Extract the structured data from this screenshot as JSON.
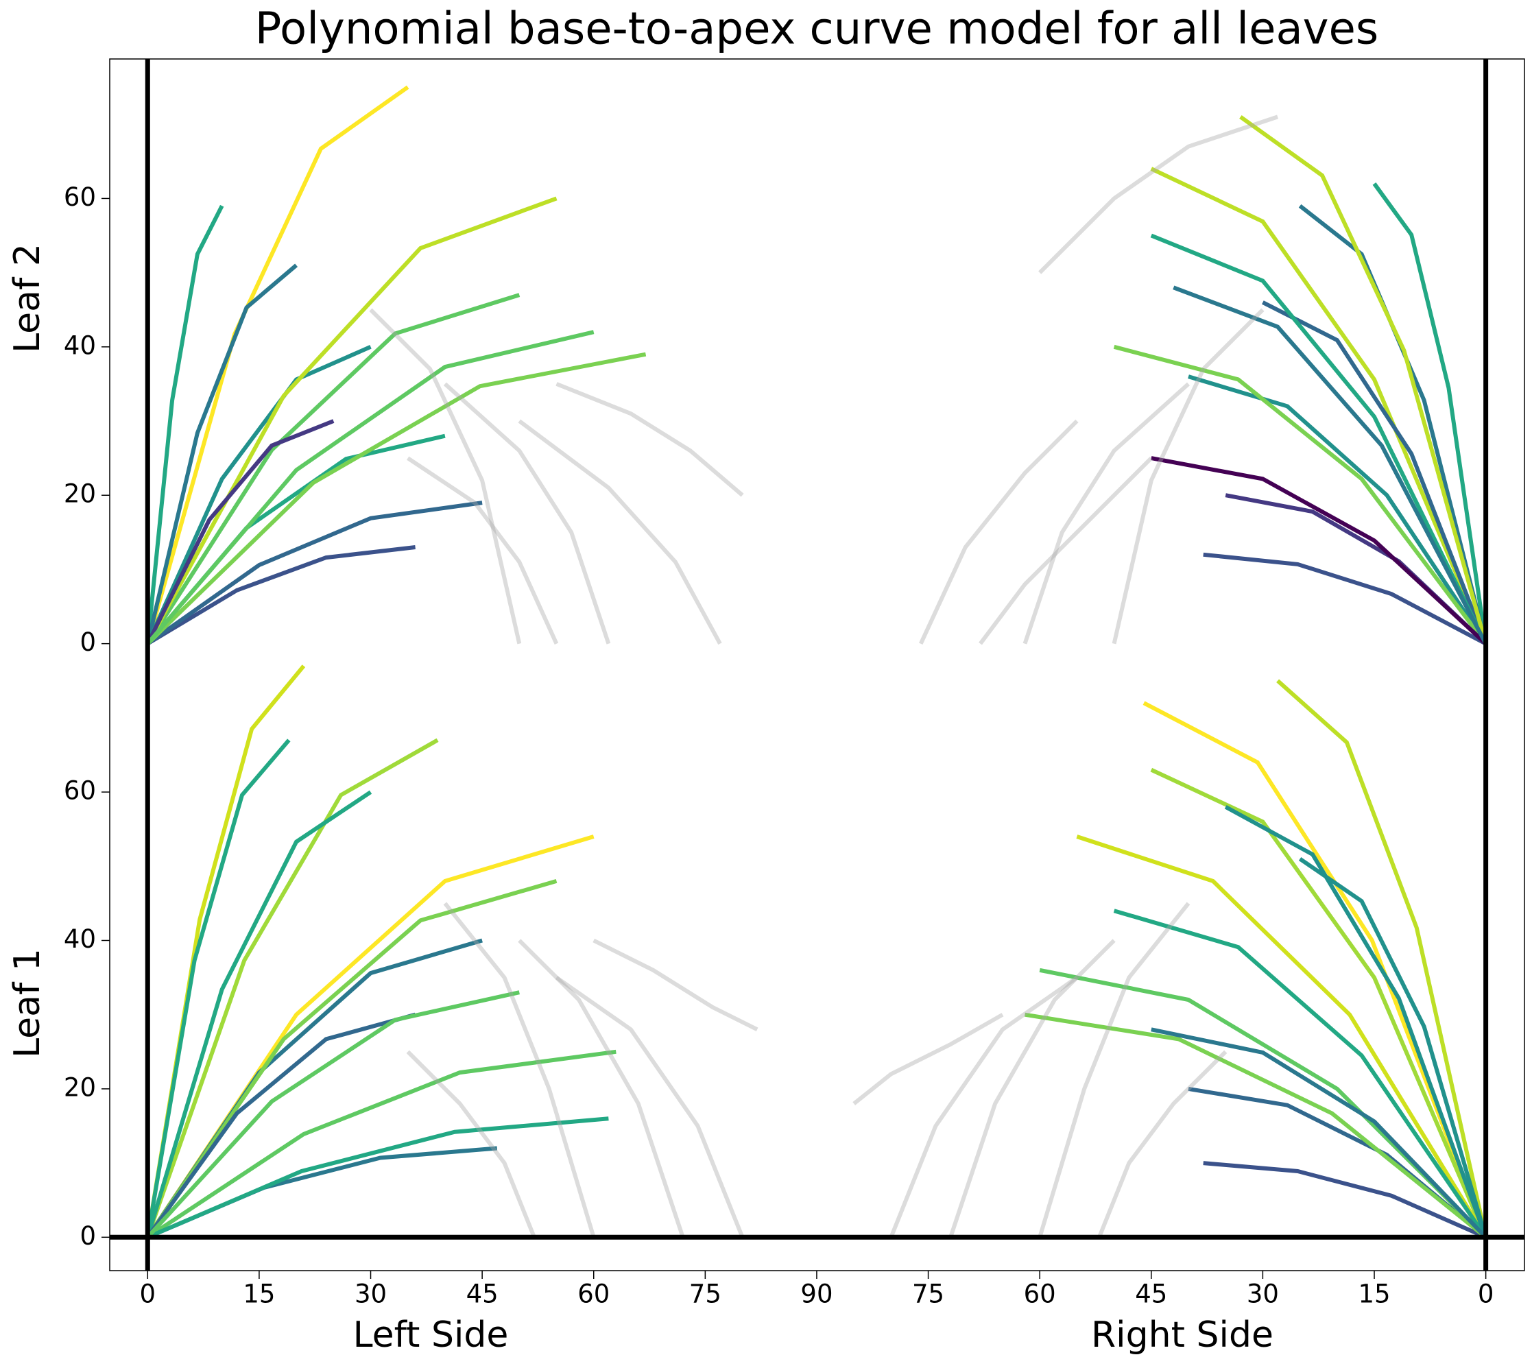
{
  "chart_data": {
    "type": "line",
    "title": "Polynomial base-to-apex curve model for all leaves",
    "xlabels": [
      "Left Side",
      "Right Side"
    ],
    "ylabels": [
      "Leaf 2",
      "Leaf 1"
    ],
    "xlim": [
      -5.1,
      185.2
    ],
    "ylim": [
      -4.5,
      158.8
    ],
    "xticks": [
      0,
      15,
      30,
      45,
      60,
      75,
      90,
      {
        "value": 105,
        "label": "75"
      },
      {
        "value": 120,
        "label": "60"
      },
      {
        "value": 135,
        "label": "45"
      },
      {
        "value": 150,
        "label": "30"
      },
      {
        "value": 165,
        "label": "15"
      },
      {
        "value": 180,
        "label": "0"
      }
    ],
    "yticks": [
      0,
      20,
      40,
      60,
      {
        "value": 80,
        "label": "0"
      },
      {
        "value": 100,
        "label": "20"
      },
      {
        "value": 120,
        "label": "40"
      },
      {
        "value": 140,
        "label": "60"
      }
    ],
    "reference_lines": {
      "x": [
        0,
        180
      ],
      "y": [
        0
      ]
    },
    "series": [
      {
        "color": "#3b528b",
        "x": [
          0,
          12,
          24,
          36
        ],
        "values": [
          80,
          87.2,
          91.6,
          93
        ]
      },
      {
        "color": "#22a884",
        "x": [
          0,
          3.3,
          6.7,
          10
        ],
        "values": [
          80,
          112.8,
          132.5,
          139
        ]
      },
      {
        "color": "#fde725",
        "x": [
          0,
          11.7,
          23.3,
          35
        ],
        "values": [
          80,
          121.7,
          146.7,
          155
        ]
      },
      {
        "color": "#2a788e",
        "x": [
          0,
          6.7,
          13.3,
          20
        ],
        "values": [
          80,
          108.4,
          125.3,
          131
        ]
      },
      {
        "color": "#31688e",
        "x": [
          0,
          15,
          30,
          45
        ],
        "values": [
          80,
          90.6,
          96.9,
          99
        ]
      },
      {
        "color": "#21918c",
        "x": [
          0,
          10,
          20,
          30
        ],
        "values": [
          80,
          102.2,
          115.6,
          120
        ]
      },
      {
        "color": "#22a884",
        "x": [
          0,
          13.3,
          26.7,
          40
        ],
        "values": [
          80,
          95.6,
          104.9,
          108
        ]
      },
      {
        "color": "#5ec962",
        "x": [
          0,
          16.7,
          33.3,
          50
        ],
        "values": [
          80,
          106.1,
          121.8,
          127
        ]
      },
      {
        "color": "#7ad151",
        "x": [
          0,
          22.3,
          44.7,
          67
        ],
        "values": [
          80,
          101.7,
          114.7,
          119
        ]
      },
      {
        "color": "#bddf26",
        "x": [
          0,
          18.3,
          36.7,
          55
        ],
        "values": [
          80,
          113.4,
          133.3,
          140
        ]
      },
      {
        "color": "#443983",
        "x": [
          0,
          8.3,
          16.7,
          25
        ],
        "values": [
          80,
          96.7,
          106.7,
          110
        ]
      },
      {
        "color": "#5ec962",
        "x": [
          0,
          20,
          40,
          60
        ],
        "values": [
          80,
          103.4,
          117.3,
          122
        ]
      },
      {
        "color": "#a8a8a8",
        "x": [
          30,
          38,
          45,
          50
        ],
        "values": [
          125,
          117,
          102,
          80
        ]
      },
      {
        "color": "#a8a8a8",
        "x": [
          40,
          50,
          57,
          62
        ],
        "values": [
          115,
          106,
          95,
          80
        ]
      },
      {
        "color": "#a8a8a8",
        "x": [
          50,
          62,
          71,
          77
        ],
        "values": [
          110,
          101,
          91,
          80
        ]
      },
      {
        "color": "#a8a8a8",
        "x": [
          55,
          65,
          73,
          80
        ],
        "values": [
          115,
          111,
          106,
          100
        ]
      },
      {
        "color": "#a8a8a8",
        "x": [
          35,
          44,
          50,
          55
        ],
        "values": [
          105,
          99,
          91,
          80
        ]
      },
      {
        "color": "#3b528b",
        "x": [
          180,
          167.3,
          154.7,
          142
        ],
        "values": [
          80,
          86.7,
          90.7,
          92
        ]
      },
      {
        "color": "#22a884",
        "x": [
          180,
          175,
          170,
          165
        ],
        "values": [
          80,
          114.5,
          135.1,
          142
        ]
      },
      {
        "color": "#bddf26",
        "x": [
          180,
          165,
          150,
          135
        ],
        "values": [
          80,
          115.6,
          136.9,
          144
        ]
      },
      {
        "color": "#2a788e",
        "x": [
          180,
          171.7,
          163.3,
          155
        ],
        "values": [
          80,
          112.8,
          132.5,
          139
        ]
      },
      {
        "color": "#21918c",
        "x": [
          180,
          166.7,
          153.3,
          140
        ],
        "values": [
          80,
          100,
          112,
          116
        ]
      },
      {
        "color": "#31688e",
        "x": [
          180,
          170,
          160,
          150
        ],
        "values": [
          80,
          105.6,
          120.9,
          126
        ]
      },
      {
        "color": "#22a884",
        "x": [
          180,
          165,
          150,
          135
        ],
        "values": [
          80,
          110.6,
          128.9,
          135
        ]
      },
      {
        "color": "#7ad151",
        "x": [
          180,
          163.3,
          146.7,
          130
        ],
        "values": [
          80,
          102.2,
          115.6,
          120
        ]
      },
      {
        "color": "#bddf26",
        "x": [
          180,
          169,
          158,
          147
        ],
        "values": [
          80,
          119.5,
          143.1,
          151
        ]
      },
      {
        "color": "#443983",
        "x": [
          180,
          168.3,
          156.7,
          145
        ],
        "values": [
          80,
          91.1,
          97.8,
          100
        ]
      },
      {
        "color": "#440154",
        "x": [
          180,
          165,
          150,
          135
        ],
        "values": [
          80,
          93.9,
          102.2,
          105
        ]
      },
      {
        "color": "#2a788e",
        "x": [
          180,
          166,
          152,
          138
        ],
        "values": [
          80,
          106.7,
          122.7,
          128
        ]
      },
      {
        "color": "#a8a8a8",
        "x": [
          150,
          142,
          135,
          130
        ],
        "values": [
          125,
          117,
          102,
          80
        ]
      },
      {
        "color": "#a8a8a8",
        "x": [
          140,
          130,
          123,
          118
        ],
        "values": [
          115,
          106,
          95,
          80
        ]
      },
      {
        "color": "#a8a8a8",
        "x": [
          135,
          125,
          118,
          112
        ],
        "values": [
          105,
          95,
          88,
          80
        ]
      },
      {
        "color": "#a8a8a8",
        "x": [
          125,
          118,
          110,
          104
        ],
        "values": [
          110,
          103,
          93,
          80
        ]
      },
      {
        "color": "#a8a8a8",
        "x": [
          120,
          130,
          140,
          152
        ],
        "values": [
          130,
          140,
          147,
          151
        ]
      },
      {
        "color": "#2a788e",
        "x": [
          0,
          15.7,
          31.3,
          47
        ],
        "values": [
          0,
          6.7,
          10.7,
          12
        ]
      },
      {
        "color": "#d0e11c",
        "x": [
          0,
          7,
          14,
          21
        ],
        "values": [
          0,
          42.8,
          68.5,
          77
        ]
      },
      {
        "color": "#22a884",
        "x": [
          0,
          6.3,
          12.7,
          19
        ],
        "values": [
          0,
          37.3,
          59.6,
          67
        ]
      },
      {
        "color": "#a0da39",
        "x": [
          0,
          13,
          26,
          39
        ],
        "values": [
          0,
          37.3,
          59.6,
          67
        ]
      },
      {
        "color": "#fde725",
        "x": [
          0,
          20,
          40,
          60
        ],
        "values": [
          0,
          30,
          48,
          54
        ]
      },
      {
        "color": "#5ec962",
        "x": [
          0,
          21,
          42,
          63
        ],
        "values": [
          0,
          13.9,
          22.2,
          25
        ]
      },
      {
        "color": "#2a788e",
        "x": [
          0,
          15,
          30,
          45
        ],
        "values": [
          0,
          22.2,
          35.6,
          40
        ]
      },
      {
        "color": "#7ad151",
        "x": [
          0,
          18.3,
          36.7,
          55
        ],
        "values": [
          0,
          26.7,
          42.7,
          48
        ]
      },
      {
        "color": "#22a884",
        "x": [
          0,
          10,
          20,
          30
        ],
        "values": [
          0,
          33.4,
          53.3,
          60
        ]
      },
      {
        "color": "#22a884",
        "x": [
          0,
          20.7,
          41.3,
          62
        ],
        "values": [
          0,
          8.9,
          14.2,
          16
        ]
      },
      {
        "color": "#31688e",
        "x": [
          0,
          12,
          24,
          36
        ],
        "values": [
          0,
          16.7,
          26.7,
          30
        ]
      },
      {
        "color": "#5ec962",
        "x": [
          0,
          16.7,
          33.3,
          50
        ],
        "values": [
          0,
          18.3,
          29.3,
          33
        ]
      },
      {
        "color": "#a8a8a8",
        "x": [
          40,
          48,
          54,
          60
        ],
        "values": [
          45,
          35,
          20,
          0
        ]
      },
      {
        "color": "#a8a8a8",
        "x": [
          50,
          58,
          66,
          72
        ],
        "values": [
          40,
          32,
          18,
          0
        ]
      },
      {
        "color": "#a8a8a8",
        "x": [
          55,
          65,
          74,
          80
        ],
        "values": [
          35,
          28,
          15,
          0
        ]
      },
      {
        "color": "#a8a8a8",
        "x": [
          60,
          68,
          76,
          82
        ],
        "values": [
          40,
          36,
          31,
          28
        ]
      },
      {
        "color": "#a8a8a8",
        "x": [
          35,
          42,
          48,
          52
        ],
        "values": [
          25,
          18,
          10,
          0
        ]
      },
      {
        "color": "#3b528b",
        "x": [
          180,
          167.3,
          154.7,
          142
        ],
        "values": [
          0,
          5.6,
          8.9,
          10
        ]
      },
      {
        "color": "#fde725",
        "x": [
          180,
          164.7,
          149.3,
          134
        ],
        "values": [
          0,
          40,
          64,
          72
        ]
      },
      {
        "color": "#bddf26",
        "x": [
          180,
          170.7,
          161.3,
          152
        ],
        "values": [
          0,
          41.7,
          66.7,
          75
        ]
      },
      {
        "color": "#21918c",
        "x": [
          180,
          171.7,
          163.3,
          155
        ],
        "values": [
          0,
          28.4,
          45.3,
          51
        ]
      },
      {
        "color": "#a0da39",
        "x": [
          180,
          165,
          150,
          135
        ],
        "values": [
          0,
          35,
          56,
          63
        ]
      },
      {
        "color": "#d0e11c",
        "x": [
          180,
          161.7,
          143.3,
          125
        ],
        "values": [
          0,
          30,
          48,
          54
        ]
      },
      {
        "color": "#31688e",
        "x": [
          180,
          166.7,
          153.3,
          140
        ],
        "values": [
          0,
          11.1,
          17.8,
          20
        ]
      },
      {
        "color": "#5ec962",
        "x": [
          180,
          160,
          140,
          120
        ],
        "values": [
          0,
          20,
          32,
          36
        ]
      },
      {
        "color": "#22a884",
        "x": [
          180,
          163.3,
          146.7,
          130
        ],
        "values": [
          0,
          24.5,
          39.1,
          44
        ]
      },
      {
        "color": "#7ad151",
        "x": [
          180,
          159.3,
          138.7,
          118
        ],
        "values": [
          0,
          16.7,
          26.7,
          30
        ]
      },
      {
        "color": "#21918c",
        "x": [
          180,
          168.3,
          156.7,
          145
        ],
        "values": [
          0,
          32.2,
          51.6,
          58
        ]
      },
      {
        "color": "#2a788e",
        "x": [
          180,
          165,
          150,
          135
        ],
        "values": [
          0,
          15.6,
          24.9,
          28
        ]
      },
      {
        "color": "#a8a8a8",
        "x": [
          140,
          132,
          126,
          120
        ],
        "values": [
          45,
          35,
          20,
          0
        ]
      },
      {
        "color": "#a8a8a8",
        "x": [
          130,
          122,
          114,
          108
        ],
        "values": [
          40,
          32,
          18,
          0
        ]
      },
      {
        "color": "#a8a8a8",
        "x": [
          125,
          115,
          106,
          100
        ],
        "values": [
          35,
          28,
          15,
          0
        ]
      },
      {
        "color": "#a8a8a8",
        "x": [
          115,
          108,
          100,
          95
        ],
        "values": [
          30,
          26,
          22,
          18
        ]
      },
      {
        "color": "#a8a8a8",
        "x": [
          145,
          138,
          132,
          128
        ],
        "values": [
          25,
          18,
          10,
          0
        ]
      }
    ]
  }
}
